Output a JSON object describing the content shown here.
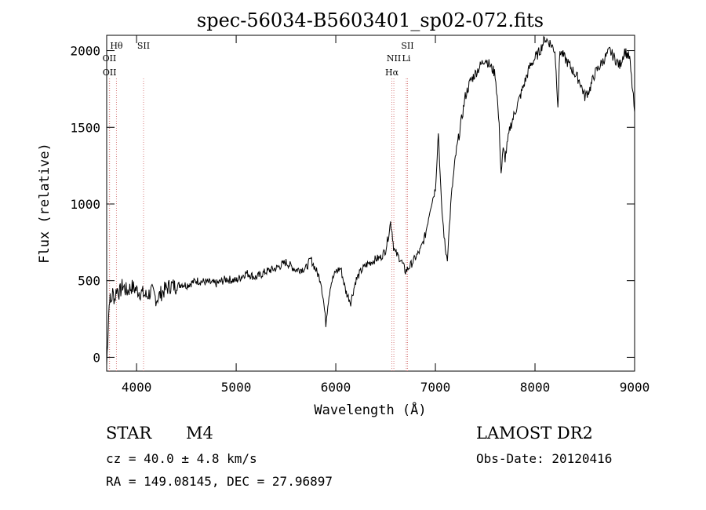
{
  "chart_data": {
    "type": "line",
    "title": "spec-56034-B5603401_sp02-072.fits",
    "xlabel": "Wavelength (Å)",
    "ylabel": "Flux (relative)",
    "xlim": [
      3700,
      9000
    ],
    "ylim": [
      -90,
      2100
    ],
    "x_ticks": [
      4000,
      5000,
      6000,
      7000,
      8000,
      9000
    ],
    "x_tick_labels": [
      "4000",
      "5000",
      "6000",
      "7000",
      "8000",
      "9000"
    ],
    "y_ticks": [
      0,
      500,
      1000,
      1500,
      2000
    ],
    "y_tick_labels": [
      "0",
      "500",
      "1000",
      "1500",
      "2000"
    ],
    "grid": false,
    "series": [
      {
        "x": [
          3700,
          3710,
          3720,
          3730,
          3740,
          3760,
          3780,
          3800,
          3830,
          3860,
          3900,
          3950,
          4000,
          4050,
          4100,
          4150,
          4200,
          4250,
          4300,
          4350,
          4400,
          4450,
          4500,
          4600,
          4700,
          4800,
          4900,
          5000,
          5100,
          5200,
          5300,
          5400,
          5500,
          5600,
          5700,
          5750,
          5800,
          5850,
          5880,
          5900,
          5920,
          5950,
          6000,
          6050,
          6100,
          6150,
          6200,
          6250,
          6300,
          6350,
          6400,
          6450,
          6500,
          6530,
          6550,
          6565,
          6580,
          6600,
          6650,
          6700,
          6750,
          6800,
          6850,
          6900,
          6950,
          7000,
          7030,
          7060,
          7080,
          7100,
          7120,
          7140,
          7160,
          7200,
          7250,
          7300,
          7350,
          7400,
          7450,
          7500,
          7550,
          7600,
          7620,
          7640,
          7660,
          7680,
          7700,
          7750,
          7800,
          7850,
          7900,
          7950,
          8000,
          8050,
          8100,
          8150,
          8200,
          8230,
          8250,
          8300,
          8350,
          8400,
          8450,
          8500,
          8550,
          8600,
          8650,
          8700,
          8750,
          8800,
          8850,
          8900,
          8950,
          9000
        ],
        "y": [
          -50,
          120,
          280,
          400,
          350,
          420,
          380,
          450,
          420,
          470,
          430,
          460,
          440,
          420,
          400,
          430,
          380,
          420,
          450,
          470,
          460,
          480,
          470,
          500,
          490,
          480,
          510,
          500,
          550,
          520,
          560,
          580,
          620,
          570,
          580,
          640,
          570,
          500,
          350,
          220,
          350,
          480,
          560,
          580,
          430,
          360,
          500,
          560,
          600,
          620,
          640,
          650,
          700,
          800,
          880,
          820,
          720,
          680,
          640,
          560,
          600,
          650,
          700,
          800,
          980,
          1100,
          1470,
          1000,
          850,
          700,
          650,
          850,
          1050,
          1300,
          1500,
          1700,
          1800,
          1850,
          1900,
          1950,
          1900,
          1850,
          1700,
          1500,
          1200,
          1350,
          1300,
          1500,
          1600,
          1700,
          1800,
          1900,
          1950,
          2000,
          2080,
          2050,
          2000,
          1650,
          2000,
          1950,
          1900,
          1850,
          1800,
          1700,
          1750,
          1850,
          1900,
          1950,
          2000,
          1950,
          1900,
          2000,
          1950,
          1600
        ]
      }
    ],
    "lines": [
      {
        "label": "Hθ",
        "x": 3798
      },
      {
        "label": "OII",
        "x": 3727
      },
      {
        "label": "OII",
        "x": 3729
      },
      {
        "label": "SII",
        "x": 4070
      },
      {
        "label": "NII",
        "x": 6583
      },
      {
        "label": "Hα",
        "x": 6563
      },
      {
        "label": "SII",
        "x": 6720
      },
      {
        "label": "Li",
        "x": 6708
      }
    ]
  },
  "info": {
    "class_label": "STAR",
    "subclass": "M4",
    "cz_text": "cz = 40.0 ± 4.8 km/s",
    "radec_text": "RA = 149.08145, DEC =  27.96897",
    "survey": "LAMOST DR2",
    "obs_date": "Obs-Date: 20120416"
  }
}
